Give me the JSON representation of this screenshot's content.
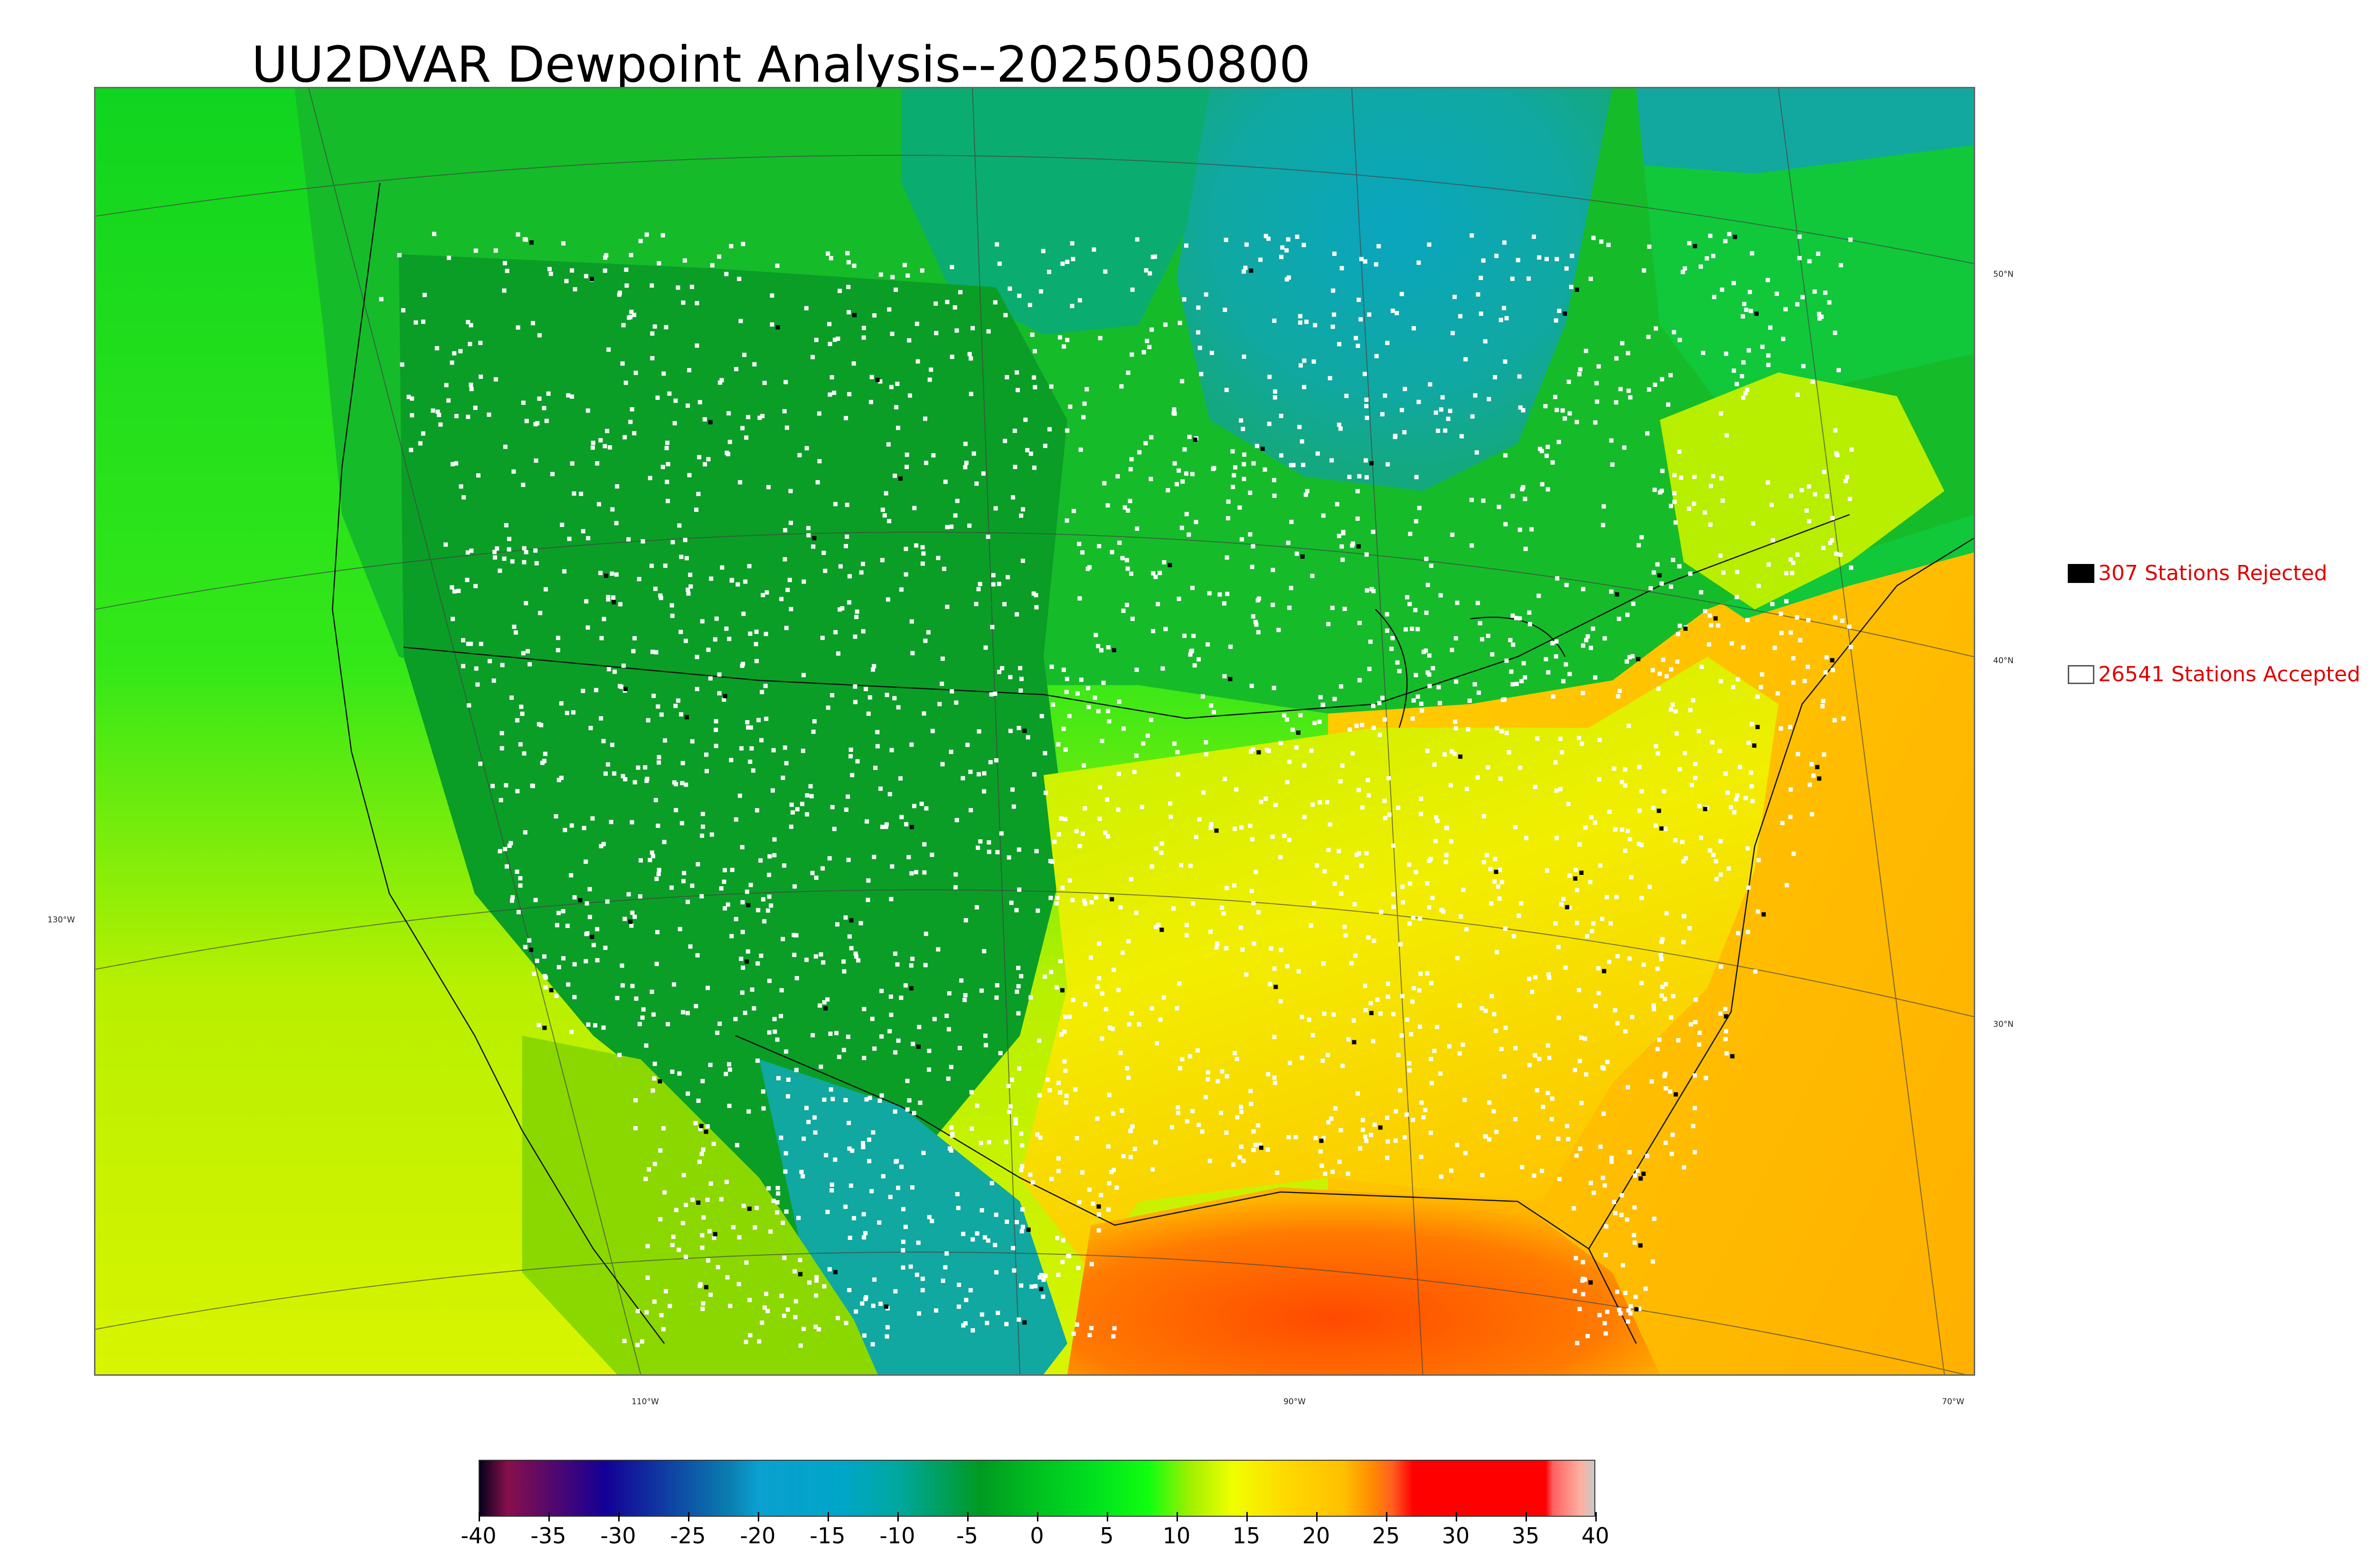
{
  "title": "UU2DVAR Dewpoint Analysis--2025050800",
  "legend": {
    "rejected": {
      "label": "307 Stations Rejected",
      "color": "#000000"
    },
    "accepted": {
      "label": "26541 Stations Accepted",
      "color": "#ffffff"
    }
  },
  "graticule": {
    "latitudes": [
      "50°N",
      "40°N",
      "30°N"
    ],
    "longitudes": [
      "130°W",
      "110°W",
      "90°W",
      "70°W"
    ]
  },
  "colorbar": {
    "ticks": [
      "-40",
      "-35",
      "-30",
      "-25",
      "-20",
      "-15",
      "-10",
      "-5",
      "0",
      "5",
      "10",
      "15",
      "20",
      "25",
      "30",
      "35",
      "40"
    ],
    "range": [
      -40,
      40
    ],
    "stops": [
      {
        "value": -40,
        "color": "#05001c"
      },
      {
        "value": -38,
        "color": "#870f4b"
      },
      {
        "value": -31,
        "color": "#140096"
      },
      {
        "value": -22,
        "color": "#0a7fb0"
      },
      {
        "value": -20,
        "color": "#0aa0d0"
      },
      {
        "value": -14,
        "color": "#00a6c8"
      },
      {
        "value": -10,
        "color": "#00a8a0"
      },
      {
        "value": -7,
        "color": "#00a060"
      },
      {
        "value": -4,
        "color": "#009a20"
      },
      {
        "value": 0,
        "color": "#00c020"
      },
      {
        "value": 4,
        "color": "#00e020"
      },
      {
        "value": 8,
        "color": "#10ff10"
      },
      {
        "value": 11,
        "color": "#a0f000"
      },
      {
        "value": 14,
        "color": "#f0ff00"
      },
      {
        "value": 18,
        "color": "#ffd800"
      },
      {
        "value": 22,
        "color": "#ffc000"
      },
      {
        "value": 24,
        "color": "#ff8c00"
      },
      {
        "value": 25.5,
        "color": "#ff6020"
      },
      {
        "value": 27,
        "color": "#ff0000"
      },
      {
        "value": 36.5,
        "color": "#ff0000"
      },
      {
        "value": 37,
        "color": "#ff6060"
      },
      {
        "value": 39,
        "color": "#ffb0a0"
      },
      {
        "value": 40,
        "color": "#c8c8c8"
      }
    ]
  },
  "colors": {
    "pacific": "#12e018",
    "dry_west": "#0a9e26",
    "canada": "#16c028",
    "cold_canada": "#10a6a8",
    "southwest_sea": "#c8f000",
    "atlantic": "#ffc200",
    "gulf": "#ff5a00",
    "southeast": "#ffd800",
    "station_ok": "#ffffff",
    "station_bad": "#000000"
  }
}
